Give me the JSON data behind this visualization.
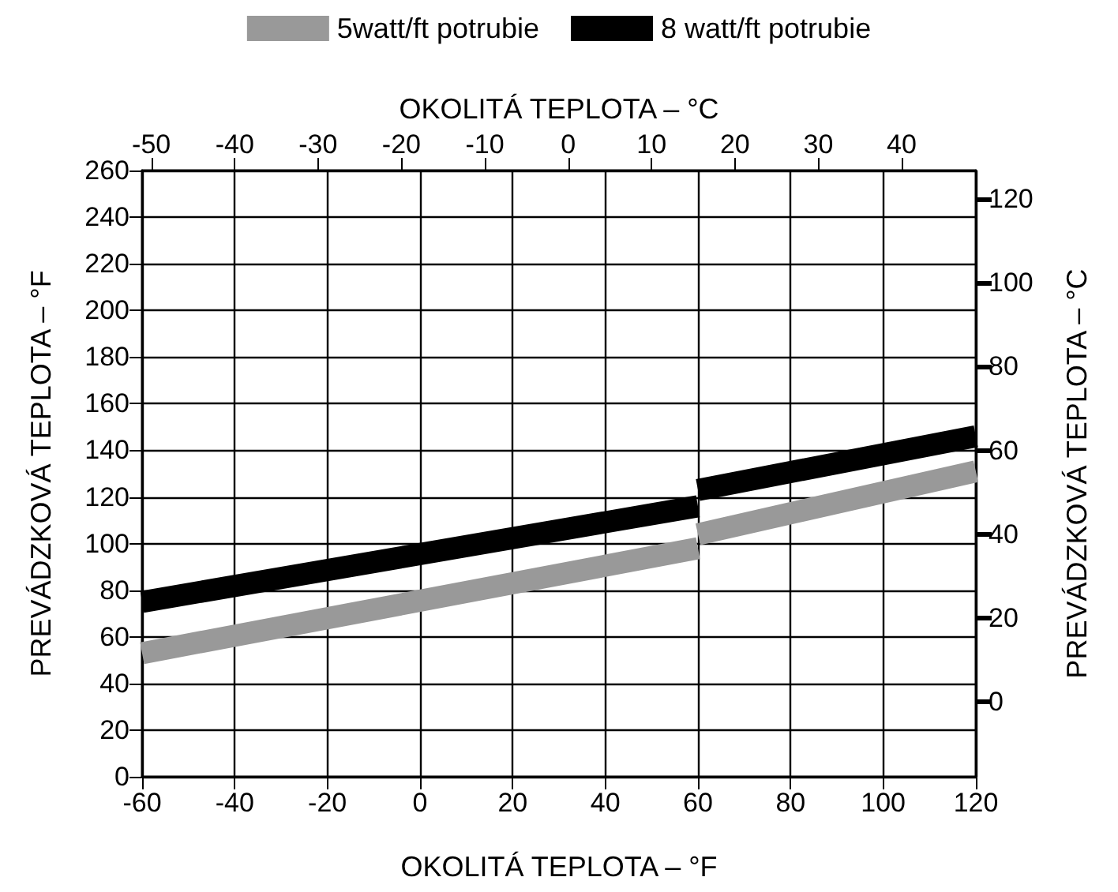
{
  "chart_data": {
    "type": "line",
    "xlabel": "OKOLITÁ TEPLOTA – °F",
    "ylabel": "PREVÁDZKOVÁ TEPLOTA – °F",
    "x2label": "OKOLITÁ TEPLOTA – °C",
    "y2label": "PREVÁDZKOVÁ TEPLOTA – °C",
    "x": [
      -60,
      60,
      null,
      60,
      120
    ],
    "series": [
      {
        "name": "5watt/ft potrubie",
        "color": "#999999",
        "values": [
          53,
          98,
          null,
          104,
          131
        ]
      },
      {
        "name": "8 watt/ft potrubie",
        "color": "#000000",
        "values": [
          75,
          116,
          null,
          123,
          146
        ]
      }
    ],
    "xlim": [
      -60,
      120
    ],
    "xticks": [
      -60,
      -40,
      -20,
      0,
      20,
      40,
      60,
      80,
      100,
      120
    ],
    "ylim": [
      0,
      260
    ],
    "yticks": [
      0,
      20,
      40,
      60,
      80,
      100,
      120,
      140,
      160,
      180,
      200,
      220,
      240,
      260
    ],
    "x2lim": [
      -51.1,
      48.9
    ],
    "x2ticks": [
      -50,
      -40,
      -30,
      -20,
      -10,
      0,
      10,
      20,
      30,
      40
    ],
    "y2lim": [
      -17.8,
      126.7
    ],
    "y2ticks": [
      0,
      20,
      40,
      60,
      80,
      100,
      120
    ],
    "grid": true,
    "legend": "top",
    "marker": "none"
  }
}
